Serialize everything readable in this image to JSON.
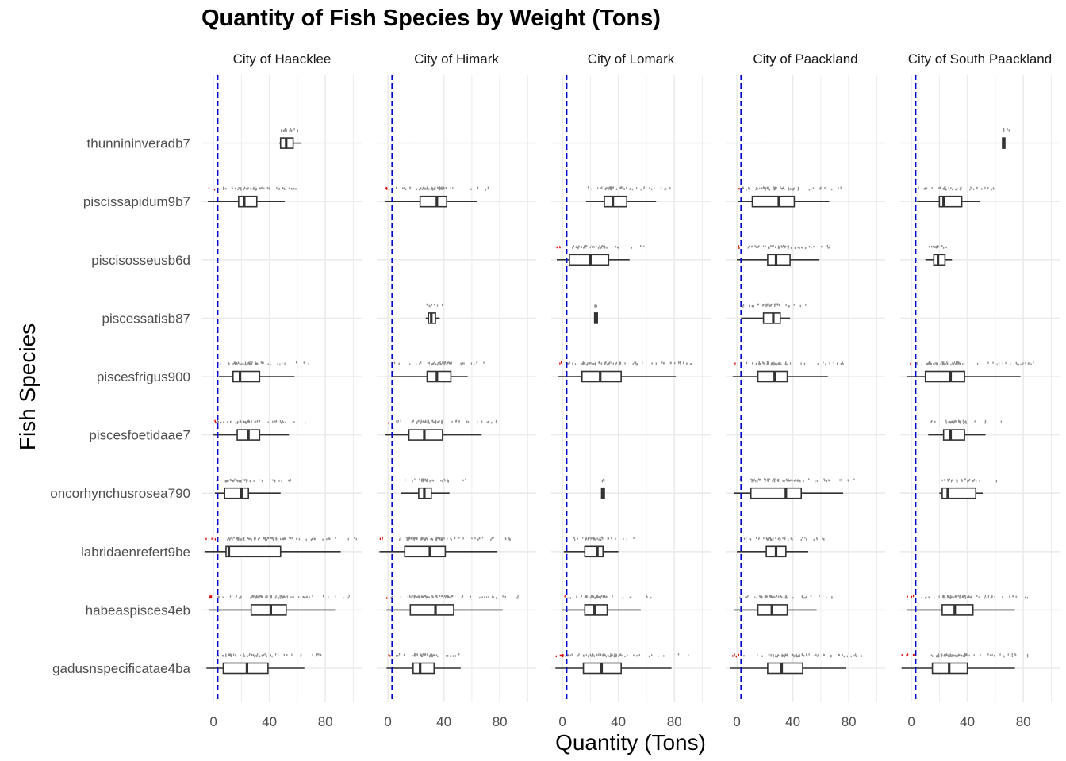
{
  "chart_data": {
    "type": "boxplot",
    "title": "Quantity of Fish Species by Weight (Tons)",
    "xlabel": "Quantity (Tons)",
    "ylabel": "Fish Species",
    "xlim": [
      -8,
      106
    ],
    "x_ticks": [
      0,
      40,
      80
    ],
    "grid": true,
    "reference_line": {
      "x": 3,
      "style": "dashed",
      "color": "#0000cc"
    },
    "colors": {
      "box": "#333333",
      "points": "#8c8c8c",
      "low_points": "#dd0000",
      "grid": "#ebebeb"
    },
    "species": [
      "gadusnspecificatae4ba",
      "habeaspisces4eb",
      "labridaenrefert9be",
      "oncorhynchusrosea790",
      "piscesfoetidaae7",
      "piscesfrigus900",
      "piscessatisb87",
      "piscisosseusb6d",
      "piscissapidum9b7",
      "thunnininveradb7"
    ],
    "facets": [
      {
        "name": "City of Haacklee",
        "boxes": {
          "thunnininveradb7": [
            47,
            48,
            52,
            57,
            63
          ],
          "piscissapidum9b7": [
            -4,
            18,
            22,
            31,
            51
          ],
          "piscesfrigus900": [
            4,
            14,
            19,
            33,
            58
          ],
          "piscesfoetidaae7": [
            0,
            17,
            25,
            33,
            54
          ],
          "oncorhynchusrosea790": [
            1,
            8,
            20,
            25,
            48
          ],
          "labridaenrefert9be": [
            -6,
            9,
            11,
            48,
            91
          ],
          "habeaspisces4eb": [
            -3,
            27,
            41,
            52,
            87
          ],
          "gadusnspecificatae4ba": [
            -5,
            7,
            24,
            39,
            65
          ]
        }
      },
      {
        "name": "City of Himark",
        "boxes": {
          "piscissapidum9b7": [
            -2,
            23,
            35,
            42,
            64
          ],
          "piscessatisb87": [
            27,
            29,
            31,
            34,
            37
          ],
          "piscesfrigus900": [
            4,
            28,
            35,
            45,
            57
          ],
          "piscesfoetidaae7": [
            -2,
            15,
            26,
            39,
            67
          ],
          "oncorhynchusrosea790": [
            9,
            22,
            26,
            31,
            44
          ],
          "labridaenrefert9be": [
            -6,
            12,
            30,
            41,
            78
          ],
          "habeaspisces4eb": [
            -1,
            16,
            34,
            47,
            82
          ],
          "gadusnspecificatae4ba": [
            -1,
            18,
            23,
            33,
            52
          ]
        }
      },
      {
        "name": "City of Lomark",
        "boxes": {
          "piscissapidum9b7": [
            17,
            30,
            36,
            46,
            67
          ],
          "piscisosseusb6d": [
            -4,
            5,
            20,
            33,
            48
          ],
          "piscessatisb87": [
            23,
            23,
            24,
            25,
            25
          ],
          "piscesfrigus900": [
            -3,
            14,
            27,
            42,
            81
          ],
          "oncorhynchusrosea790": [
            28,
            28,
            29,
            30,
            30
          ],
          "labridaenrefert9be": [
            1,
            16,
            25,
            29,
            40
          ],
          "habeaspisces4eb": [
            0,
            16,
            23,
            32,
            56
          ],
          "gadusnspecificatae4ba": [
            -5,
            15,
            28,
            42,
            78
          ]
        }
      },
      {
        "name": "City of Paackland",
        "boxes": {
          "piscissapidum9b7": [
            1,
            11,
            30,
            41,
            66
          ],
          "piscisosseusb6d": [
            0,
            22,
            28,
            38,
            59
          ],
          "piscessatisb87": [
            3,
            19,
            26,
            31,
            38
          ],
          "piscesfrigus900": [
            -3,
            15,
            27,
            36,
            65
          ],
          "oncorhynchusrosea790": [
            -2,
            10,
            35,
            46,
            76
          ],
          "labridaenrefert9be": [
            0,
            21,
            28,
            35,
            51
          ],
          "habeaspisces4eb": [
            -2,
            15,
            25,
            36,
            57
          ],
          "gadusnspecificatae4ba": [
            -5,
            22,
            32,
            47,
            78
          ]
        }
      },
      {
        "name": "City of South Paackland",
        "boxes": {
          "thunnininveradb7": [
            66,
            66,
            66,
            66,
            67
          ],
          "piscissapidum9b7": [
            4,
            20,
            23,
            36,
            49
          ],
          "piscisosseusb6d": [
            10,
            16,
            19,
            24,
            29
          ],
          "piscesfrigus900": [
            -3,
            10,
            28,
            38,
            78
          ],
          "oncorhynchusrosea790": [
            20,
            22,
            26,
            46,
            51
          ],
          "piscesfoetidaae7": [
            12,
            23,
            28,
            38,
            53
          ],
          "habeaspisces4eb": [
            -3,
            22,
            31,
            44,
            74
          ],
          "gadusnspecificatae4ba": [
            -7,
            15,
            27,
            40,
            74
          ]
        }
      }
    ]
  }
}
